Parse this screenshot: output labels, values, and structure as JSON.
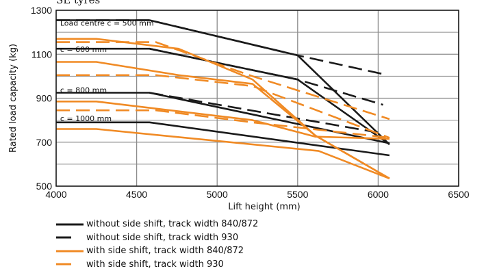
{
  "header": {
    "clipped_title": "SE tyres"
  },
  "chart_data": {
    "type": "line",
    "xlabel": "Lift height (mm)",
    "ylabel": "Rated load capacity (kg)",
    "xlim": [
      4000,
      6500
    ],
    "ylim": [
      500,
      1300
    ],
    "xticks": [
      4000,
      4500,
      5000,
      5500,
      6000,
      6500
    ],
    "yticks": [
      500,
      700,
      900,
      1100,
      1300
    ],
    "grid": true,
    "legend_position": "bottom-left",
    "annotations": [
      {
        "text": "Load centre c = 500 mm",
        "x": 4025,
        "y": 1230
      },
      {
        "text": "c = 600 mm",
        "x": 4025,
        "y": 1110
      },
      {
        "text": "c = 800 mm",
        "x": 4025,
        "y": 925
      },
      {
        "text": "c = 1000 mm",
        "x": 4025,
        "y": 795
      }
    ],
    "series": [
      {
        "name": "without side shift, track width 840/872",
        "color": "#1a1a1a",
        "dash": "solid",
        "groups": [
          [
            [
              4000,
              1255
            ],
            [
              4580,
              1255
            ],
            [
              5500,
              1095
            ],
            [
              6070,
              690
            ]
          ],
          [
            [
              4000,
              1125
            ],
            [
              4580,
              1125
            ],
            [
              5500,
              985
            ],
            [
              6070,
              690
            ]
          ],
          [
            [
              4000,
              925
            ],
            [
              4580,
              925
            ],
            [
              6070,
              695
            ]
          ],
          [
            [
              4000,
              790
            ],
            [
              4580,
              790
            ],
            [
              6070,
              640
            ]
          ]
        ]
      },
      {
        "name": "without side shift, track width 930",
        "color": "#1a1a1a",
        "dash": "dashed",
        "groups": [
          [
            [
              4000,
              1255
            ],
            [
              4580,
              1255
            ],
            [
              5500,
              1095
            ],
            [
              6030,
              1010
            ]
          ],
          [
            [
              4580,
              1125
            ],
            [
              5500,
              985
            ],
            [
              6030,
              870
            ]
          ],
          [
            [
              4580,
              925
            ],
            [
              6030,
              740
            ]
          ]
        ]
      },
      {
        "name": "with side shift, track width 840/872",
        "color": "#f08a24",
        "dash": "solid",
        "groups": [
          [
            [
              4000,
              1170
            ],
            [
              4250,
              1170
            ],
            [
              4760,
              1125
            ],
            [
              5220,
              985
            ],
            [
              5610,
              730
            ],
            [
              6070,
              535
            ]
          ],
          [
            [
              4000,
              1065
            ],
            [
              4250,
              1065
            ],
            [
              4760,
              1005
            ],
            [
              5220,
              965
            ],
            [
              5610,
              730
            ],
            [
              6070,
              535
            ]
          ],
          [
            [
              4000,
              885
            ],
            [
              4250,
              885
            ],
            [
              5220,
              800
            ],
            [
              5610,
              725
            ],
            [
              6070,
              715
            ]
          ],
          [
            [
              4000,
              760
            ],
            [
              4250,
              760
            ],
            [
              5630,
              660
            ],
            [
              6070,
              535
            ]
          ]
        ]
      },
      {
        "name": "with side shift, track width 930",
        "color": "#f08a24",
        "dash": "dashed",
        "groups": [
          [
            [
              4000,
              1155
            ],
            [
              4620,
              1155
            ],
            [
              5220,
              1000
            ],
            [
              6070,
              805
            ]
          ],
          [
            [
              4000,
              1005
            ],
            [
              4620,
              1005
            ],
            [
              5220,
              955
            ],
            [
              6070,
              720
            ]
          ],
          [
            [
              4000,
              845
            ],
            [
              4620,
              845
            ],
            [
              5220,
              790
            ],
            [
              6070,
              720
            ]
          ]
        ]
      }
    ]
  }
}
